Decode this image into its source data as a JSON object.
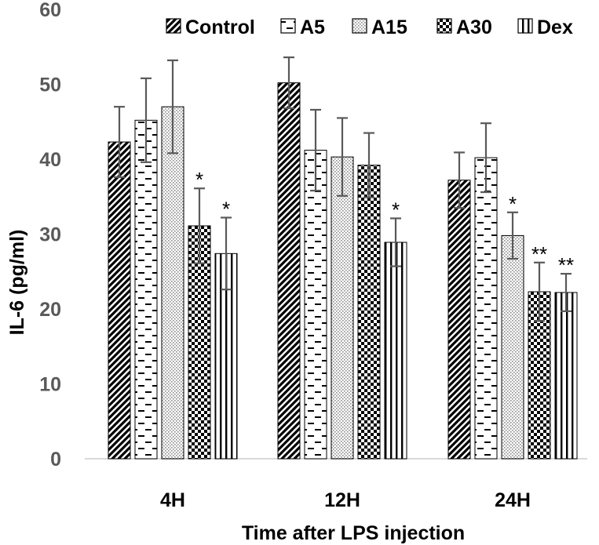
{
  "chart_data": {
    "type": "bar",
    "title": "",
    "xlabel": "Time after LPS injection",
    "ylabel": "IL-6 (pg/ml)",
    "ylim": [
      0,
      60
    ],
    "yticks": [
      0,
      10,
      20,
      30,
      40,
      50,
      60
    ],
    "grid": false,
    "legend_position": "top",
    "categories": [
      "4H",
      "12H",
      "24H"
    ],
    "series": [
      {
        "name": "Control",
        "pattern": "diagonal-stripes",
        "values": [
          42.3,
          50.2,
          37.2
        ],
        "errors": [
          4.7,
          3.4,
          3.7
        ],
        "sig": [
          "",
          "",
          ""
        ]
      },
      {
        "name": "A5",
        "pattern": "dashes",
        "values": [
          45.2,
          41.2,
          40.2
        ],
        "errors": [
          5.6,
          5.4,
          4.6
        ],
        "sig": [
          "",
          "",
          ""
        ]
      },
      {
        "name": "A15",
        "pattern": "dots",
        "values": [
          47.0,
          40.3,
          29.8
        ],
        "errors": [
          6.2,
          5.2,
          3.1
        ],
        "sig": [
          "",
          "",
          "*"
        ]
      },
      {
        "name": "A30",
        "pattern": "checker",
        "values": [
          31.1,
          39.2,
          22.3
        ],
        "errors": [
          5.0,
          4.3,
          3.9
        ],
        "sig": [
          "*",
          "",
          "**"
        ]
      },
      {
        "name": "Dex",
        "pattern": "vertical-stripes",
        "values": [
          27.4,
          28.9,
          22.2
        ],
        "errors": [
          4.8,
          3.2,
          2.5
        ],
        "sig": [
          "*",
          "*",
          "**"
        ]
      }
    ]
  }
}
